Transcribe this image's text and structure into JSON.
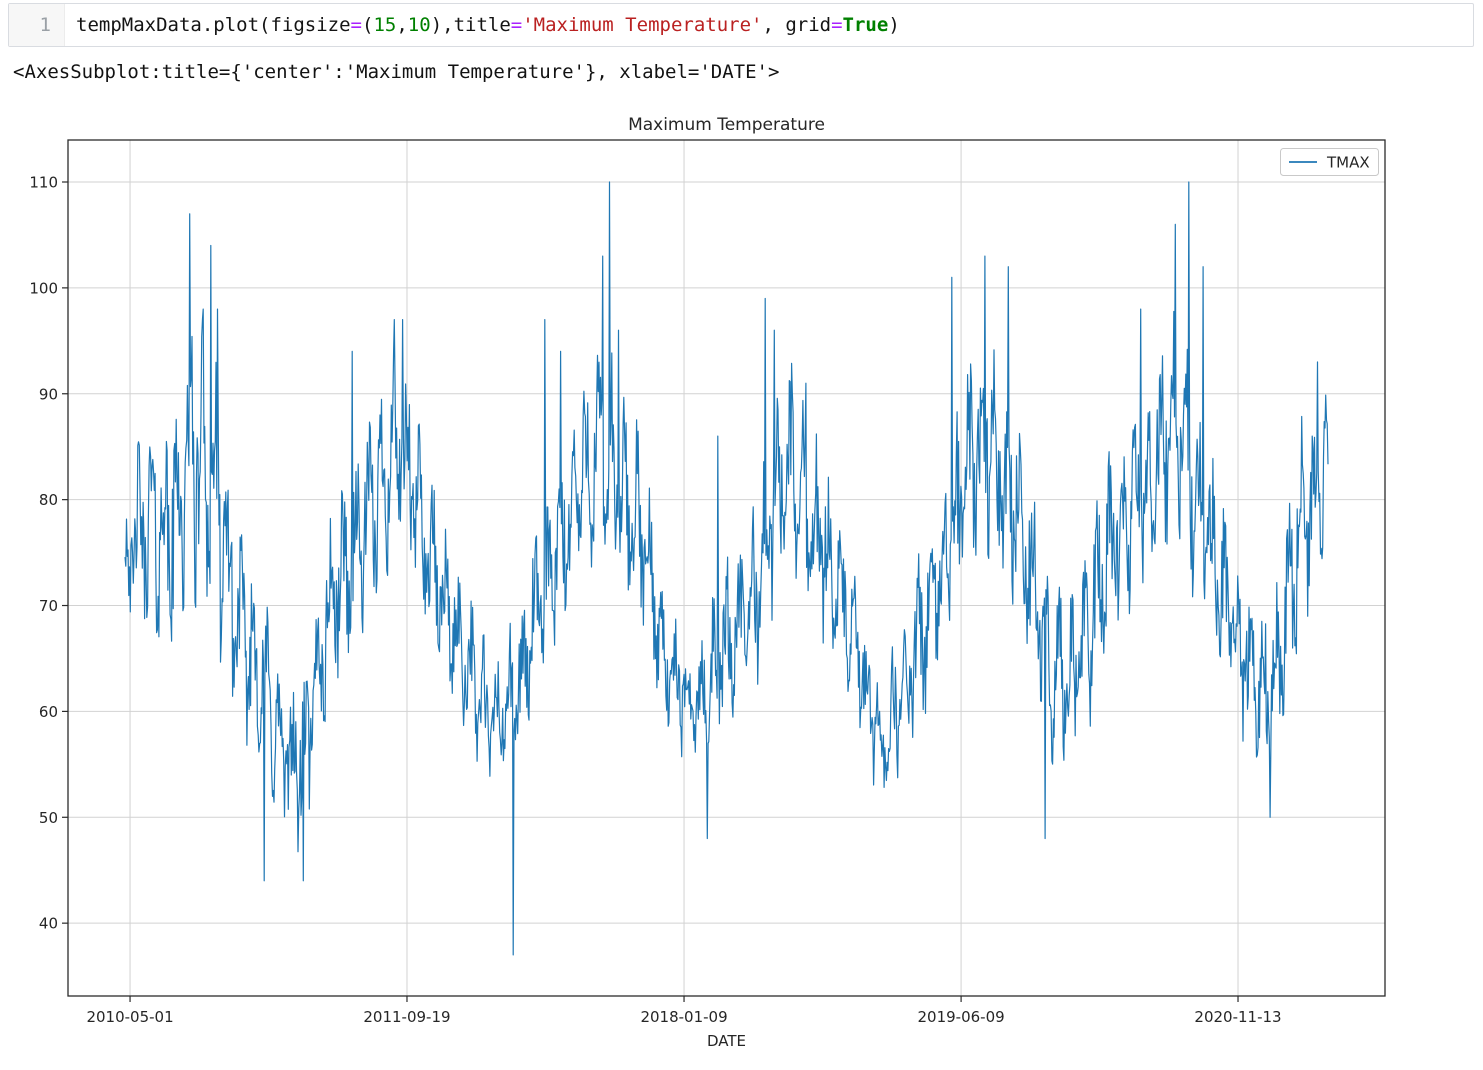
{
  "cell": {
    "execution_line_number": "1",
    "code_tokens": [
      {
        "text": "tempMaxData.plot(figsize",
        "style": "plain"
      },
      {
        "text": "=",
        "style": "operator"
      },
      {
        "text": "(",
        "style": "plain"
      },
      {
        "text": "15",
        "style": "number"
      },
      {
        "text": ",",
        "style": "plain"
      },
      {
        "text": "10",
        "style": "number"
      },
      {
        "text": ")",
        "style": "plain"
      },
      {
        "text": ",title",
        "style": "plain"
      },
      {
        "text": "=",
        "style": "operator"
      },
      {
        "text": "'Maximum Temperature'",
        "style": "string"
      },
      {
        "text": ", grid",
        "style": "plain"
      },
      {
        "text": "=",
        "style": "operator"
      },
      {
        "text": "True",
        "style": "keyword"
      },
      {
        "text": ")",
        "style": "plain"
      }
    ]
  },
  "output": {
    "repr_text": "<AxesSubplot:title={'center':'Maximum Temperature'}, xlabel='DATE'>"
  },
  "chart_data": {
    "type": "line",
    "title": "Maximum Temperature",
    "xlabel": "DATE",
    "ylabel": "",
    "grid": true,
    "legend": {
      "entries": [
        "TMAX"
      ],
      "position": "upper right"
    },
    "series": [
      {
        "name": "TMAX",
        "color": "#1f77b4"
      }
    ],
    "yticks": [
      40,
      50,
      60,
      70,
      80,
      90,
      100,
      110
    ],
    "ylim": [
      33.1,
      114.0
    ],
    "value_range_observed": [
      37,
      110
    ],
    "xticks": [
      {
        "label": "2010-05-01",
        "f": 0.0042
      },
      {
        "label": "2011-09-19",
        "f": 0.2344
      },
      {
        "label": "2018-01-09",
        "f": 0.4647
      },
      {
        "label": "2019-06-09",
        "f": 0.695
      },
      {
        "label": "2020-11-13",
        "f": 0.9252
      }
    ],
    "n_points": 1600,
    "noise_seed": 42,
    "noise_mix": {
      "sin1_amp": 0.5,
      "sin1_freq": 0.37,
      "sin2_amp": 0.18,
      "sin2_freq": 0.073,
      "rand_amp": 0.62
    },
    "clamp_non_outlier": [
      46,
      104
    ],
    "envelope": [
      [
        0.0,
        73,
        7
      ],
      [
        0.021,
        77,
        10
      ],
      [
        0.054,
        82,
        14
      ],
      [
        0.075,
        80,
        13
      ],
      [
        0.1,
        67,
        9
      ],
      [
        0.129,
        56,
        8
      ],
      [
        0.15,
        57,
        9
      ],
      [
        0.17,
        68,
        9
      ],
      [
        0.195,
        78,
        9
      ],
      [
        0.224,
        83,
        10
      ],
      [
        0.245,
        80,
        9
      ],
      [
        0.274,
        66,
        7
      ],
      [
        0.303,
        60,
        7
      ],
      [
        0.328,
        61,
        7
      ],
      [
        0.353,
        74,
        9
      ],
      [
        0.374,
        80,
        9
      ],
      [
        0.403,
        84,
        11
      ],
      [
        0.424,
        79,
        9
      ],
      [
        0.449,
        64,
        6
      ],
      [
        0.478,
        61,
        5
      ],
      [
        0.499,
        65,
        8
      ],
      [
        0.528,
        74,
        9
      ],
      [
        0.553,
        82,
        10
      ],
      [
        0.578,
        78,
        9
      ],
      [
        0.603,
        66,
        7
      ],
      [
        0.628,
        58,
        6
      ],
      [
        0.653,
        62,
        7
      ],
      [
        0.682,
        76,
        10
      ],
      [
        0.715,
        85,
        11
      ],
      [
        0.74,
        82,
        10
      ],
      [
        0.765,
        63,
        9
      ],
      [
        0.79,
        65,
        9
      ],
      [
        0.815,
        72,
        9
      ],
      [
        0.844,
        82,
        10
      ],
      [
        0.877,
        86,
        11
      ],
      [
        0.902,
        76,
        10
      ],
      [
        0.931,
        63,
        7
      ],
      [
        0.952,
        64,
        8
      ],
      [
        0.977,
        75,
        10
      ],
      [
        1.0,
        84,
        7
      ]
    ],
    "outliers": [
      [
        0.054,
        107
      ],
      [
        0.065,
        98
      ],
      [
        0.071,
        104
      ],
      [
        0.077,
        98
      ],
      [
        0.116,
        44
      ],
      [
        0.148,
        44
      ],
      [
        0.189,
        94
      ],
      [
        0.224,
        97
      ],
      [
        0.231,
        97
      ],
      [
        0.323,
        37
      ],
      [
        0.349,
        97
      ],
      [
        0.362,
        94
      ],
      [
        0.397,
        103
      ],
      [
        0.403,
        110
      ],
      [
        0.41,
        96
      ],
      [
        0.484,
        48
      ],
      [
        0.493,
        86
      ],
      [
        0.532,
        99
      ],
      [
        0.54,
        96
      ],
      [
        0.566,
        91
      ],
      [
        0.687,
        101
      ],
      [
        0.715,
        103
      ],
      [
        0.734,
        102
      ],
      [
        0.765,
        48
      ],
      [
        0.844,
        98
      ],
      [
        0.873,
        106
      ],
      [
        0.884,
        110
      ],
      [
        0.896,
        102
      ],
      [
        0.952,
        50
      ],
      [
        0.991,
        93
      ]
    ],
    "colors": {
      "line": "#1f77b4",
      "grid": "#d2d2d2",
      "spine": "#2b2b2b",
      "text": "#262626",
      "legend_border": "#c9c9c9"
    }
  }
}
